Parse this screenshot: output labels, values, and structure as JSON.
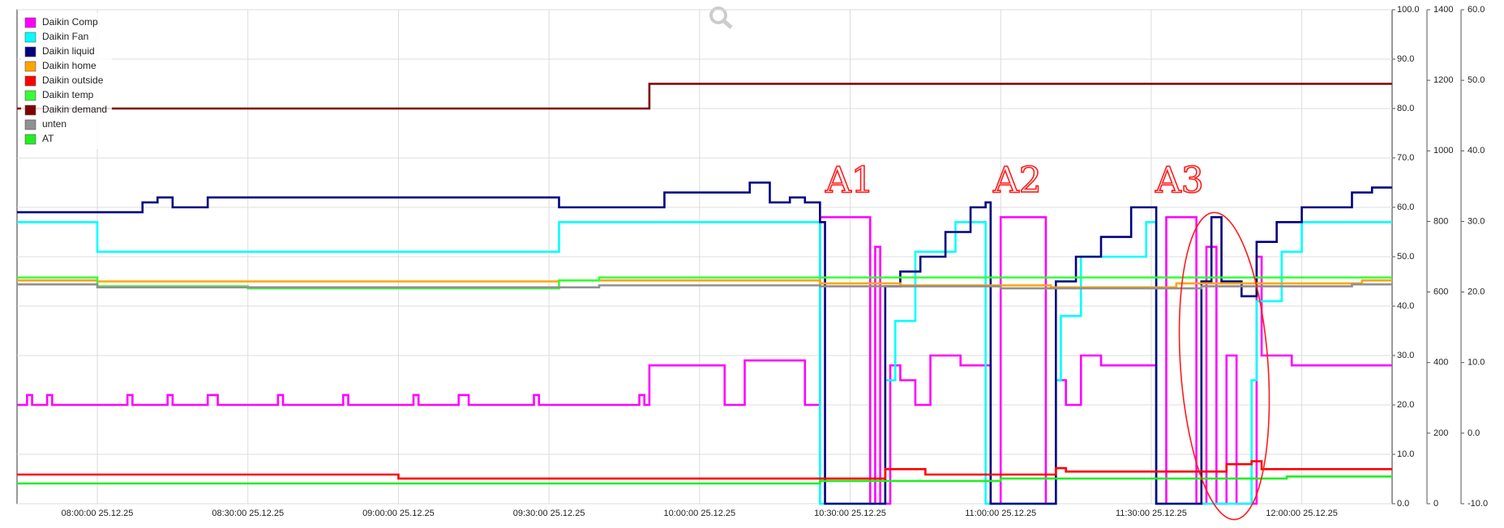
{
  "chart_data": {
    "type": "line",
    "step": true,
    "grid": true,
    "legend": "upper-left",
    "annotations": [
      "A1",
      "A2",
      "A3"
    ],
    "xlim": [
      "07:44:00 25.12.25",
      "12:18:00 25.12.25"
    ],
    "xticks": [
      "08:00:00 25.12.25",
      "08:30:00 25.12.25",
      "09:00:00 25.12.25",
      "09:30:00 25.12.25",
      "10:00:00 25.12.25",
      "10:30:00 25.12.25",
      "11:00:00 25.12.25",
      "11:30:00 25.12.25",
      "12:00:00 25.12.25"
    ],
    "ylim": [
      0,
      100
    ],
    "yticks": [
      {
        "value": 0,
        "label": "0.0"
      },
      {
        "value": 10,
        "label": "10.0"
      },
      {
        "value": 20,
        "label": "20.0"
      },
      {
        "value": 30,
        "label": "30.0"
      },
      {
        "value": 40,
        "label": "40.0"
      },
      {
        "value": 50,
        "label": "50.0"
      },
      {
        "value": 60,
        "label": "60.0"
      },
      {
        "value": 70,
        "label": "70.0"
      },
      {
        "value": 80,
        "label": "80.0"
      },
      {
        "value": 90,
        "label": "90.0"
      },
      {
        "value": 100,
        "label": "100.0"
      }
    ],
    "y2lim": [
      0,
      1400
    ],
    "y2ticks": [
      0,
      200,
      400,
      600,
      800,
      1000,
      1200,
      1400
    ],
    "y3lim": [
      -10,
      60
    ],
    "y3ticks": [
      {
        "value": -10,
        "label": "-10.0"
      },
      {
        "value": 0,
        "label": "0.0"
      },
      {
        "value": 10,
        "label": "10.0"
      },
      {
        "value": 20,
        "label": "20.0"
      },
      {
        "value": 30,
        "label": "30.0"
      },
      {
        "value": 40,
        "label": "40.0"
      },
      {
        "value": 50,
        "label": "50.0"
      },
      {
        "value": 60,
        "label": "60.0"
      }
    ],
    "series": [
      {
        "name": "Daikin Comp",
        "color": "#ff00ff",
        "x": [
          "07:44:00 25.12.25",
          "07:46:00 25.12.25",
          "07:47:00 25.12.25",
          "07:50:00 25.12.25",
          "07:51:00 25.12.25",
          "08:06:00 25.12.25",
          "08:07:00 25.12.25",
          "08:14:00 25.12.25",
          "08:15:00 25.12.25",
          "08:22:00 25.12.25",
          "08:24:00 25.12.25",
          "08:36:00 25.12.25",
          "08:37:00 25.12.25",
          "08:49:00 25.12.25",
          "08:50:00 25.12.25",
          "09:03:00 25.12.25",
          "09:04:00 25.12.25",
          "09:12:00 25.12.25",
          "09:14:00 25.12.25",
          "09:27:00 25.12.25",
          "09:28:00 25.12.25",
          "09:48:00 25.12.25",
          "09:49:00 25.12.25",
          "09:50:00 25.12.25",
          "10:05:00 25.12.25",
          "10:09:00 25.12.25",
          "10:21:00 25.12.25",
          "10:24:00 25.12.25",
          "10:34:00 25.12.25",
          "10:35:00 25.12.25",
          "10:36:00 25.12.25",
          "10:38:00 25.12.25",
          "10:40:00 25.12.25",
          "10:43:00 25.12.25",
          "10:46:00 25.12.25",
          "10:52:00 25.12.25",
          "10:58:00 25.12.25",
          "11:00:00 25.12.25",
          "11:09:00 25.12.25",
          "11:11:00 25.12.25",
          "11:13:00 25.12.25",
          "11:16:00 25.12.25",
          "11:20:00 25.12.25",
          "11:31:00 25.12.25",
          "11:33:00 25.12.25",
          "11:39:00 25.12.25",
          "11:41:00 25.12.25",
          "11:43:00 25.12.25",
          "11:45:00 25.12.25",
          "11:47:00 25.12.25",
          "11:51:00 25.12.25",
          "11:52:00 25.12.25",
          "11:58:00 25.12.25",
          "12:18:00 25.12.25"
        ],
        "values": [
          20,
          22,
          20,
          22,
          20,
          22,
          20,
          22,
          20,
          22,
          20,
          22,
          20,
          22,
          20,
          22,
          20,
          22,
          20,
          22,
          20,
          22,
          20,
          28,
          20,
          29,
          20,
          58,
          0,
          52,
          0,
          28,
          25,
          20,
          30,
          28,
          0,
          58,
          0,
          25,
          20,
          30,
          28,
          0,
          58,
          0,
          52,
          0,
          30,
          0,
          50,
          30,
          28,
          28
        ]
      },
      {
        "name": "Daikin Fan",
        "color": "#00ffff",
        "x": [
          "07:44:00 25.12.25",
          "08:00:00 25.12.25",
          "09:32:00 25.12.25",
          "10:24:00 25.12.25",
          "10:37:00 25.12.25",
          "10:39:00 25.12.25",
          "10:43:00 25.12.25",
          "10:51:00 25.12.25",
          "10:57:00 25.12.25",
          "11:11:00 25.12.25",
          "11:12:00 25.12.25",
          "11:16:00 25.12.25",
          "11:29:00 25.12.25",
          "11:31:00 25.12.25",
          "11:50:00 25.12.25",
          "11:51:00 25.12.25",
          "11:56:00 25.12.25",
          "12:00:00 25.12.25",
          "12:18:00 25.12.25"
        ],
        "values": [
          57,
          51,
          57,
          0,
          25,
          37,
          51,
          57,
          0,
          25,
          38,
          50,
          57,
          0,
          25,
          41,
          51,
          57,
          57
        ]
      },
      {
        "name": "Daikin liquid",
        "color": "#000080",
        "x": [
          "07:44:00 25.12.25",
          "08:09:00 25.12.25",
          "08:12:00 25.12.25",
          "08:15:00 25.12.25",
          "08:22:00 25.12.25",
          "09:32:00 25.12.25",
          "09:53:00 25.12.25",
          "10:10:00 25.12.25",
          "10:14:00 25.12.25",
          "10:18:00 25.12.25",
          "10:21:00 25.12.25",
          "10:24:00 25.12.25",
          "10:25:00 25.12.25",
          "10:37:00 25.12.25",
          "10:40:00 25.12.25",
          "10:44:00 25.12.25",
          "10:49:00 25.12.25",
          "10:54:00 25.12.25",
          "10:57:00 25.12.25",
          "10:58:00 25.12.25",
          "11:11:00 25.12.25",
          "11:15:00 25.12.25",
          "11:20:00 25.12.25",
          "11:26:00 25.12.25",
          "11:31:00 25.12.25",
          "11:40:00 25.12.25",
          "11:42:00 25.12.25",
          "11:44:00 25.12.25",
          "11:48:00 25.12.25",
          "11:51:00 25.12.25",
          "11:55:00 25.12.25",
          "12:00:00 25.12.25",
          "12:10:00 25.12.25",
          "12:14:00 25.12.25",
          "12:18:00 25.12.25"
        ],
        "values": [
          59,
          61,
          62,
          60,
          62,
          60,
          63,
          65,
          61,
          62,
          61,
          57,
          0,
          44,
          47,
          50,
          55,
          60,
          61,
          0,
          45,
          50,
          54,
          60,
          0,
          45,
          58,
          45,
          42,
          53,
          57,
          60,
          63,
          64,
          64
        ]
      },
      {
        "name": "Daikin home",
        "color": "#ffa500",
        "x": [
          "07:44:00 25.12.25",
          "08:00:00 25.12.25",
          "09:32:00 25.12.25",
          "10:24:00 25.12.25",
          "10:40:00 25.12.25",
          "11:10:00 25.12.25",
          "11:35:00 25.12.25",
          "12:12:00 25.12.25",
          "12:18:00 25.12.25"
        ],
        "values": [
          45.2,
          45,
          45.2,
          44.6,
          44.2,
          43.8,
          44.6,
          45.2,
          45.2
        ]
      },
      {
        "name": "Daikin outside",
        "color": "#ff0000",
        "x": [
          "07:44:00 25.12.25",
          "09:00:00 25.12.25",
          "10:37:00 25.12.25",
          "10:45:00 25.12.25",
          "11:11:00 25.12.25",
          "11:13:00 25.12.25",
          "11:45:00 25.12.25",
          "11:50:00 25.12.25",
          "11:52:00 25.12.25",
          "12:18:00 25.12.25"
        ],
        "values": [
          5.9,
          5.1,
          7,
          5.9,
          7.2,
          6.5,
          8,
          8.6,
          7,
          7
        ]
      },
      {
        "name": "Daikin temp",
        "color": "#33ff33",
        "x": [
          "07:44:00 25.12.25",
          "08:00:00 25.12.25",
          "08:30:00 25.12.25",
          "09:32:00 25.12.25",
          "09:40:00 25.12.25",
          "12:18:00 25.12.25"
        ],
        "values": [
          45.8,
          44,
          43.6,
          45.2,
          45.8,
          45.8
        ]
      },
      {
        "name": "Daikin demand",
        "color": "#800000",
        "x": [
          "07:44:00 25.12.25",
          "09:50:00 25.12.25",
          "12:18:00 25.12.25"
        ],
        "values": [
          80,
          85,
          85
        ]
      },
      {
        "name": "unten",
        "color": "#909090",
        "x": [
          "07:44:00 25.12.25",
          "08:00:00 25.12.25",
          "09:40:00 25.12.25",
          "10:24:00 25.12.25",
          "11:00:00 25.12.25",
          "11:40:00 25.12.25",
          "12:10:00 25.12.25",
          "12:18:00 25.12.25"
        ],
        "values": [
          44.4,
          43.8,
          44.2,
          44,
          43.6,
          44,
          44.4,
          44.4
        ]
      },
      {
        "name": "AT",
        "color": "#22ee22",
        "x": [
          "07:44:00 25.12.25",
          "10:24:00 25.12.25",
          "11:00:00 25.12.25",
          "11:57:00 25.12.25",
          "12:18:00 25.12.25"
        ],
        "values": [
          4.1,
          4.6,
          5.1,
          5.5,
          5.5
        ]
      }
    ]
  }
}
